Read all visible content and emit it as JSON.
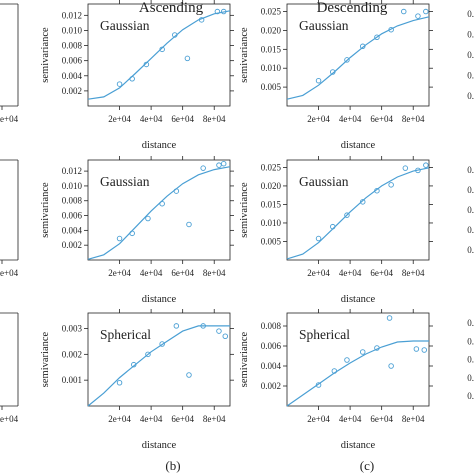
{
  "colors": {
    "curve": "#4a9fd4",
    "points": "#4a9fd4",
    "frame": "#222222",
    "text": "#222222"
  },
  "column_titles": [
    "Ascending",
    "Descending"
  ],
  "panel_labels": [
    "(b)",
    "(c)"
  ],
  "chart_data": [
    {
      "type": "scatter",
      "model": "Gaussian",
      "column": "Ascending",
      "xlabel": "distance",
      "ylabel": "semivariance",
      "xlim": [
        0,
        90000
      ],
      "ylim": [
        0,
        0.0135
      ],
      "xticks": [
        20000,
        40000,
        60000,
        80000
      ],
      "xticklabels": [
        "2e+04",
        "4e+04",
        "6e+04",
        "8e+04"
      ],
      "yticks": [
        0.002,
        0.004,
        0.006,
        0.008,
        0.01,
        0.012
      ],
      "yticklabels": [
        "0.002",
        "0.004",
        "0.006",
        "0.008",
        "0.010",
        "0.012"
      ],
      "points": [
        [
          20000,
          0.0029
        ],
        [
          28000,
          0.0036
        ],
        [
          37000,
          0.0055
        ],
        [
          47000,
          0.0075
        ],
        [
          55000,
          0.0094
        ],
        [
          63000,
          0.0063
        ],
        [
          72000,
          0.0114
        ],
        [
          82000,
          0.0125
        ],
        [
          86000,
          0.0125
        ]
      ],
      "curve": [
        [
          0,
          0.0009
        ],
        [
          10000,
          0.0012
        ],
        [
          20000,
          0.0024
        ],
        [
          30000,
          0.0043
        ],
        [
          40000,
          0.0063
        ],
        [
          50000,
          0.0083
        ],
        [
          60000,
          0.0101
        ],
        [
          70000,
          0.0114
        ],
        [
          80000,
          0.0122
        ],
        [
          90000,
          0.0126
        ]
      ]
    },
    {
      "type": "scatter",
      "model": "Gaussian",
      "column": "Descending",
      "xlabel": "distance",
      "ylabel": "semivariance",
      "xlim": [
        0,
        90000
      ],
      "ylim": [
        0,
        0.027
      ],
      "xticks": [
        20000,
        40000,
        60000,
        80000
      ],
      "xticklabels": [
        "2e+04",
        "4e+04",
        "6e+04",
        "8e+04"
      ],
      "yticks": [
        0.005,
        0.01,
        0.015,
        0.02,
        0.025
      ],
      "yticklabels": [
        "0.005",
        "0.010",
        "0.015",
        "0.020",
        "0.025"
      ],
      "points": [
        [
          20000,
          0.0067
        ],
        [
          29000,
          0.009
        ],
        [
          38000,
          0.0122
        ],
        [
          48000,
          0.0158
        ],
        [
          57000,
          0.0182
        ],
        [
          66000,
          0.0202
        ],
        [
          74000,
          0.025
        ],
        [
          83000,
          0.0238
        ],
        [
          88000,
          0.025
        ]
      ],
      "curve": [
        [
          0,
          0.0018
        ],
        [
          10000,
          0.0028
        ],
        [
          20000,
          0.0055
        ],
        [
          30000,
          0.009
        ],
        [
          40000,
          0.0128
        ],
        [
          50000,
          0.0162
        ],
        [
          60000,
          0.0191
        ],
        [
          70000,
          0.0212
        ],
        [
          80000,
          0.0226
        ],
        [
          90000,
          0.0236
        ]
      ]
    },
    {
      "type": "scatter",
      "model": "Gaussian",
      "column": "Ascending",
      "xlabel": "distance",
      "ylabel": "semivariance",
      "xlim": [
        0,
        90000
      ],
      "ylim": [
        0,
        0.0135
      ],
      "xticks": [
        20000,
        40000,
        60000,
        80000
      ],
      "xticklabels": [
        "2e+04",
        "4e+04",
        "6e+04",
        "8e+04"
      ],
      "yticks": [
        0.002,
        0.004,
        0.006,
        0.008,
        0.01,
        0.012
      ],
      "yticklabels": [
        "0.002",
        "0.004",
        "0.006",
        "0.008",
        "0.010",
        "0.012"
      ],
      "points": [
        [
          20000,
          0.0029
        ],
        [
          28000,
          0.0036
        ],
        [
          38000,
          0.0056
        ],
        [
          47000,
          0.0076
        ],
        [
          56000,
          0.0093
        ],
        [
          64000,
          0.0048
        ],
        [
          73000,
          0.0124
        ],
        [
          83000,
          0.0128
        ],
        [
          86000,
          0.013
        ]
      ],
      "curve": [
        [
          0,
          0.0001
        ],
        [
          10000,
          0.0007
        ],
        [
          20000,
          0.0022
        ],
        [
          30000,
          0.0044
        ],
        [
          40000,
          0.0066
        ],
        [
          50000,
          0.0086
        ],
        [
          60000,
          0.0103
        ],
        [
          70000,
          0.0115
        ],
        [
          80000,
          0.0122
        ],
        [
          90000,
          0.0126
        ]
      ]
    },
    {
      "type": "scatter",
      "model": "Gaussian",
      "column": "Descending",
      "xlabel": "distance",
      "ylabel": "semivariance",
      "xlim": [
        0,
        90000
      ],
      "ylim": [
        0,
        0.027
      ],
      "xticks": [
        20000,
        40000,
        60000,
        80000
      ],
      "xticklabels": [
        "2e+04",
        "4e+04",
        "6e+04",
        "8e+04"
      ],
      "yticks": [
        0.005,
        0.01,
        0.015,
        0.02,
        0.025
      ],
      "yticklabels": [
        "0.005",
        "0.010",
        "0.015",
        "0.020",
        "0.025"
      ],
      "points": [
        [
          20000,
          0.0058
        ],
        [
          29000,
          0.009
        ],
        [
          38000,
          0.0121
        ],
        [
          48000,
          0.0157
        ],
        [
          57000,
          0.0187
        ],
        [
          66000,
          0.0203
        ],
        [
          75000,
          0.0248
        ],
        [
          83000,
          0.0242
        ],
        [
          88000,
          0.0256
        ]
      ],
      "curve": [
        [
          0,
          0.0003
        ],
        [
          10000,
          0.0016
        ],
        [
          20000,
          0.0047
        ],
        [
          30000,
          0.0088
        ],
        [
          40000,
          0.013
        ],
        [
          50000,
          0.0168
        ],
        [
          60000,
          0.02
        ],
        [
          70000,
          0.0224
        ],
        [
          80000,
          0.024
        ],
        [
          90000,
          0.0249
        ]
      ]
    },
    {
      "type": "scatter",
      "model": "Spherical",
      "column": "Ascending",
      "xlabel": "distance",
      "ylabel": "semivariance",
      "xlim": [
        0,
        90000
      ],
      "ylim": [
        0,
        0.0036
      ],
      "xticks": [
        20000,
        40000,
        60000,
        80000
      ],
      "xticklabels": [
        "2e+04",
        "4e+04",
        "6e+04",
        "8e+04"
      ],
      "yticks": [
        0.001,
        0.002,
        0.003
      ],
      "yticklabels": [
        "0.001",
        "0.002",
        "0.003"
      ],
      "points": [
        [
          20000,
          0.0009
        ],
        [
          29000,
          0.0016
        ],
        [
          38000,
          0.002
        ],
        [
          47000,
          0.0024
        ],
        [
          56000,
          0.0031
        ],
        [
          64000,
          0.0012
        ],
        [
          73000,
          0.0031
        ],
        [
          83000,
          0.0029
        ],
        [
          87000,
          0.0027
        ]
      ],
      "curve": [
        [
          0,
          0.0
        ],
        [
          10000,
          0.0005
        ],
        [
          20000,
          0.0011
        ],
        [
          30000,
          0.0016
        ],
        [
          40000,
          0.0021
        ],
        [
          50000,
          0.0025
        ],
        [
          60000,
          0.0029
        ],
        [
          70000,
          0.0031
        ],
        [
          80000,
          0.0031
        ],
        [
          90000,
          0.0031
        ]
      ]
    },
    {
      "type": "scatter",
      "model": "Spherical",
      "column": "Descending",
      "xlabel": "distance",
      "ylabel": "semivariance",
      "xlim": [
        0,
        90000
      ],
      "ylim": [
        0,
        0.0093
      ],
      "xticks": [
        20000,
        40000,
        60000,
        80000
      ],
      "xticklabels": [
        "2e+04",
        "4e+04",
        "6e+04",
        "8e+04"
      ],
      "yticks": [
        0.002,
        0.004,
        0.006,
        0.008
      ],
      "yticklabels": [
        "0.002",
        "0.004",
        "0.006",
        "0.008"
      ],
      "points": [
        [
          20000,
          0.0021
        ],
        [
          30000,
          0.0035
        ],
        [
          38000,
          0.0046
        ],
        [
          48000,
          0.0054
        ],
        [
          57000,
          0.0058
        ],
        [
          66000,
          0.004
        ],
        [
          65000,
          0.0088
        ],
        [
          82000,
          0.0057
        ],
        [
          87000,
          0.0056
        ]
      ],
      "curve": [
        [
          0,
          0.0
        ],
        [
          10000,
          0.0011
        ],
        [
          20000,
          0.0022
        ],
        [
          30000,
          0.0033
        ],
        [
          40000,
          0.0043
        ],
        [
          50000,
          0.0052
        ],
        [
          60000,
          0.0059
        ],
        [
          70000,
          0.0064
        ],
        [
          80000,
          0.0065
        ],
        [
          90000,
          0.0065
        ]
      ]
    }
  ],
  "left_stub": [
    {
      "tick": "e+04"
    },
    {
      "tick": "e+04"
    },
    {
      "tick": "e+04"
    }
  ],
  "right_stub": [
    {
      "labels": [
        "0.",
        "0.",
        "0.",
        "0.",
        "0."
      ]
    },
    {
      "labels": [
        "0.",
        "0.",
        "0.",
        "0.",
        "0."
      ]
    },
    {
      "labels": [
        "0.",
        "0.",
        "0.",
        "0.",
        "0."
      ]
    }
  ]
}
